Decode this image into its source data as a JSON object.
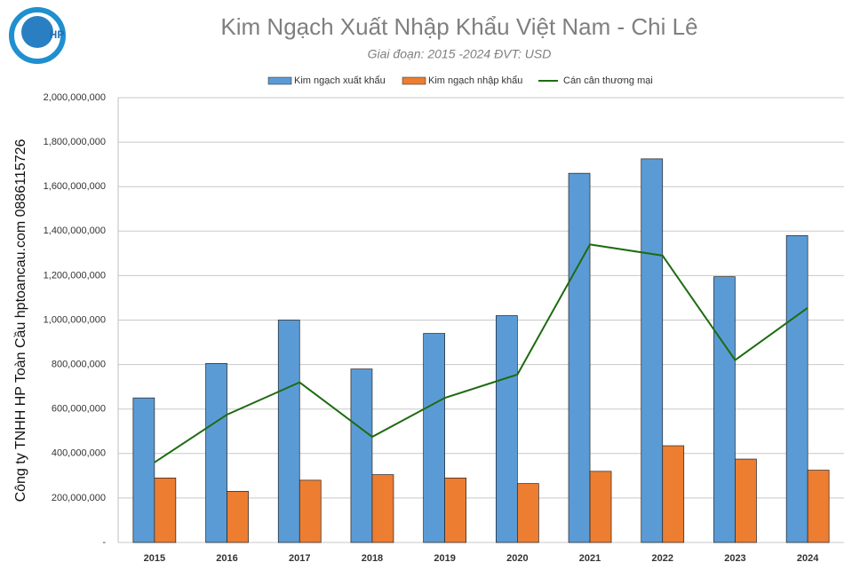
{
  "logo_text": "HP",
  "side_text": "Công ty TNHH HP Toàn Cầu hptoancau.com 0886115726",
  "chart_data": {
    "type": "bar",
    "title": "Kim Ngạch Xuất Nhập Khẩu Việt Nam - Chi Lê",
    "subtitle": "Giai đoạn: 2015 -2024  ĐVT: USD",
    "categories": [
      "2015",
      "2016",
      "2017",
      "2018",
      "2019",
      "2020",
      "2021",
      "2022",
      "2023",
      "2024"
    ],
    "series": [
      {
        "name": "Kim ngạch xuất khẩu",
        "type": "bar",
        "color": "#5b9bd5",
        "values": [
          650000000,
          805000000,
          1000000000,
          780000000,
          940000000,
          1020000000,
          1660000000,
          1725000000,
          1195000000,
          1380000000
        ]
      },
      {
        "name": "Kim ngạch nhập khẩu",
        "type": "bar",
        "color": "#ed7d31",
        "values": [
          290000000,
          230000000,
          280000000,
          305000000,
          290000000,
          265000000,
          320000000,
          435000000,
          375000000,
          325000000
        ]
      },
      {
        "name": "Cán cân thương mại",
        "type": "line",
        "color": "#1e6b12",
        "values": [
          360000000,
          575000000,
          720000000,
          475000000,
          650000000,
          755000000,
          1340000000,
          1290000000,
          820000000,
          1055000000
        ]
      }
    ],
    "ylim": [
      0,
      2000000000
    ],
    "yticks": [
      {
        "value": 0,
        "label": "-"
      },
      {
        "value": 200000000,
        "label": "200,000,000"
      },
      {
        "value": 400000000,
        "label": "400,000,000"
      },
      {
        "value": 600000000,
        "label": "600,000,000"
      },
      {
        "value": 800000000,
        "label": "800,000,000"
      },
      {
        "value": 1000000000,
        "label": "1,000,000,000"
      },
      {
        "value": 1200000000,
        "label": "1,200,000,000"
      },
      {
        "value": 1400000000,
        "label": "1,400,000,000"
      },
      {
        "value": 1600000000,
        "label": "1,600,000,000"
      },
      {
        "value": 1800000000,
        "label": "1,800,000,000"
      },
      {
        "value": 2000000000,
        "label": "2,000,000,000"
      }
    ],
    "grid": true,
    "legend": "top"
  }
}
